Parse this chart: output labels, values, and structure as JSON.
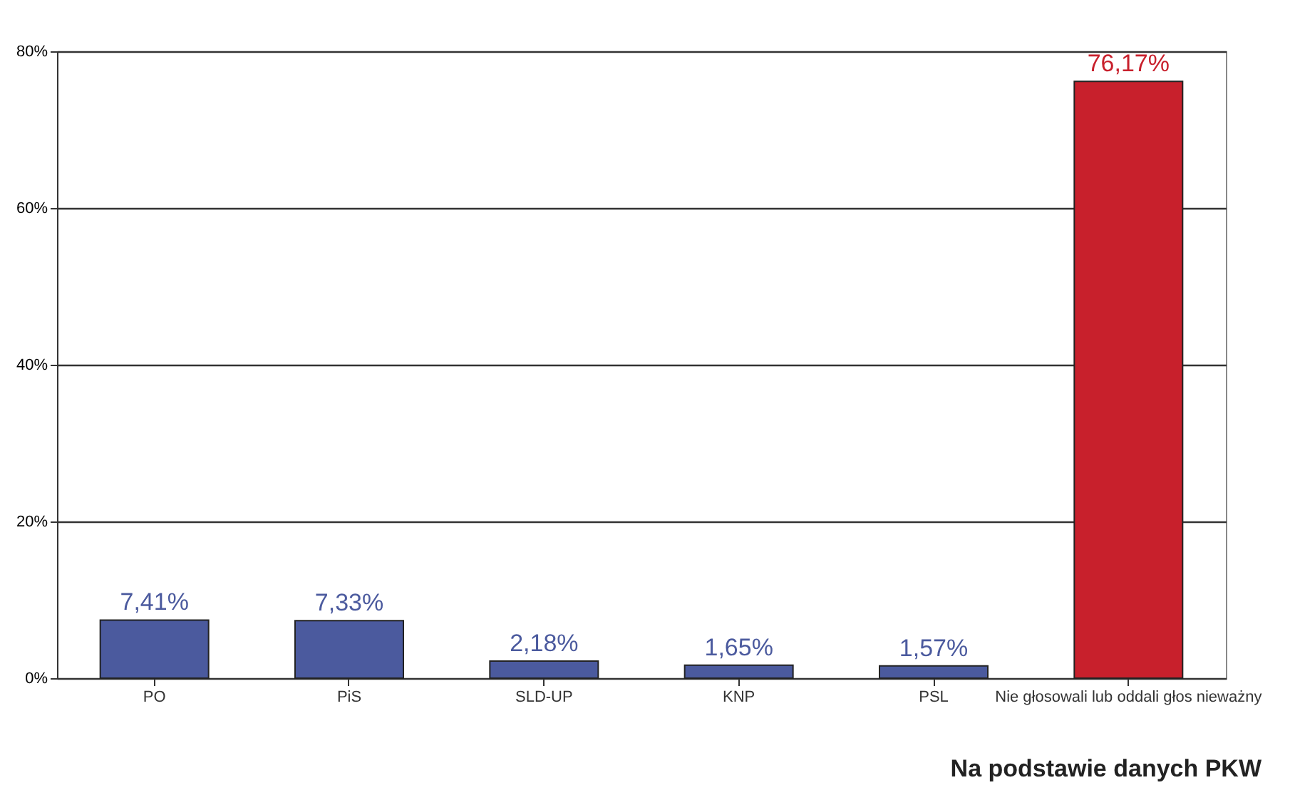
{
  "chart_data": {
    "type": "bar",
    "categories": [
      "PO",
      "PiS",
      "SLD-UP",
      "KNP",
      "PSL",
      "Nie głosowali lub oddali głos nieważny"
    ],
    "values": [
      7.41,
      7.33,
      2.18,
      1.65,
      1.57,
      76.17
    ],
    "colors": [
      "#4b5a9e",
      "#4b5a9e",
      "#4b5a9e",
      "#4b5a9e",
      "#4b5a9e",
      "#c8202c"
    ],
    "value_labels": [
      "7,41%",
      "7,33%",
      "2,18%",
      "1,65%",
      "1,57%",
      "76,17%"
    ],
    "ylim": [
      0,
      80
    ],
    "yticks": [
      {
        "value": 0,
        "label": "0%"
      },
      {
        "value": 20,
        "label": "20%"
      },
      {
        "value": 40,
        "label": "40%"
      },
      {
        "value": 60,
        "label": "60%"
      },
      {
        "value": 80,
        "label": "80%"
      }
    ],
    "grid": "y",
    "annotations": [
      "Na podstawie danych PKW"
    ]
  }
}
